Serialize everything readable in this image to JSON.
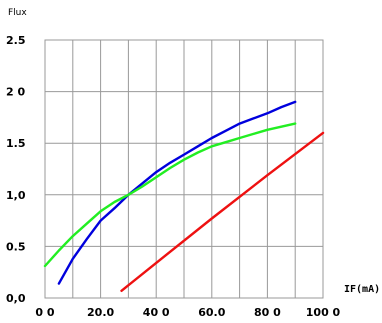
{
  "chart_data": {
    "type": "line",
    "title": "",
    "ylabel": "Flux",
    "xlabel": "IF(mA)",
    "xlim": [
      0,
      100
    ],
    "ylim": [
      0,
      2.5
    ],
    "x_ticks": [
      0,
      20,
      40,
      60,
      80,
      100
    ],
    "x_tick_labels": [
      "0 0",
      "20.0",
      "40 0",
      "60.0",
      "80 0",
      "100 0"
    ],
    "y_ticks": [
      0,
      0.5,
      1,
      1.5,
      2,
      2.5
    ],
    "y_tick_labels": [
      "0,0",
      "0.5",
      "1,0",
      "1.5",
      "2 0",
      "2.5"
    ],
    "grid": true,
    "series": [
      {
        "color": "#0000dd",
        "x": [
          5,
          10,
          15,
          20,
          25,
          30,
          35,
          40,
          45,
          50,
          55,
          60,
          65,
          70,
          75,
          80,
          85,
          90
        ],
        "y": [
          0.14,
          0.38,
          0.57,
          0.75,
          0.87,
          1.0,
          1.11,
          1.22,
          1.31,
          1.39,
          1.47,
          1.55,
          1.62,
          1.69,
          1.74,
          1.79,
          1.85,
          1.9
        ]
      },
      {
        "color": "#22ee22",
        "x": [
          0,
          5,
          10,
          15,
          20,
          25,
          30,
          35,
          40,
          45,
          50,
          55,
          60,
          65,
          70,
          75,
          80,
          85,
          90
        ],
        "y": [
          0.31,
          0.46,
          0.6,
          0.72,
          0.84,
          0.93,
          1.0,
          1.08,
          1.17,
          1.26,
          1.34,
          1.41,
          1.47,
          1.51,
          1.55,
          1.59,
          1.63,
          1.66,
          1.69
        ]
      },
      {
        "color": "#ee1111",
        "x": [
          27.5,
          40,
          60,
          80,
          100
        ],
        "y": [
          0.07,
          0.34,
          0.77,
          1.19,
          1.6
        ]
      }
    ]
  }
}
